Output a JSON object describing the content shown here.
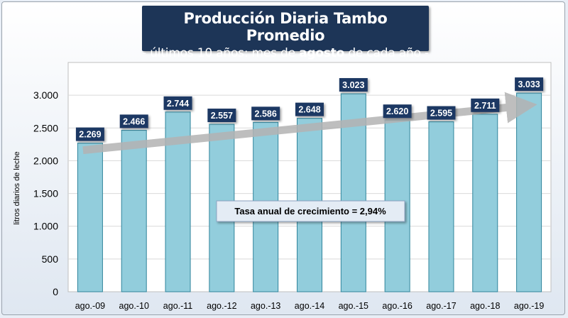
{
  "title": {
    "main": "Producción Diaria Tambo Promedio",
    "sub_before": "- últimos 10 años: mes de ",
    "sub_bold": "agosto",
    "sub_after": " de cada año -"
  },
  "chart_data": {
    "type": "bar",
    "ylabel": "litros diarios de leche",
    "ylim": [
      0,
      3500
    ],
    "yticks": [
      0,
      500,
      1000,
      1500,
      2000,
      2500,
      3000
    ],
    "ytick_labels": [
      "0",
      "500",
      "1.000",
      "1.500",
      "2.000",
      "2.500",
      "3.000"
    ],
    "categories": [
      "ago.-09",
      "ago.-10",
      "ago.-11",
      "ago.-12",
      "ago.-13",
      "ago.-14",
      "ago.-15",
      "ago.-16",
      "ago.-17",
      "ago.-18",
      "ago.-19"
    ],
    "values": [
      2269,
      2466,
      2744,
      2557,
      2586,
      2648,
      3023,
      2620,
      2595,
      2711,
      3033
    ],
    "value_labels": [
      "2.269",
      "2.466",
      "2.744",
      "2.557",
      "2.586",
      "2.648",
      "3.023",
      "2.620",
      "2.595",
      "2.711",
      "3.033"
    ],
    "annotation": "Tasa anual de crecimiento = 2,94%",
    "trend": {
      "from": 2269,
      "to": 2840
    },
    "grid": true,
    "colors": {
      "bar": "#92cddc",
      "bar_edge": "#31859c",
      "label_bg": "#1f3864",
      "grid": "#d9d9d9",
      "arrow": "#b3b3b3"
    }
  }
}
